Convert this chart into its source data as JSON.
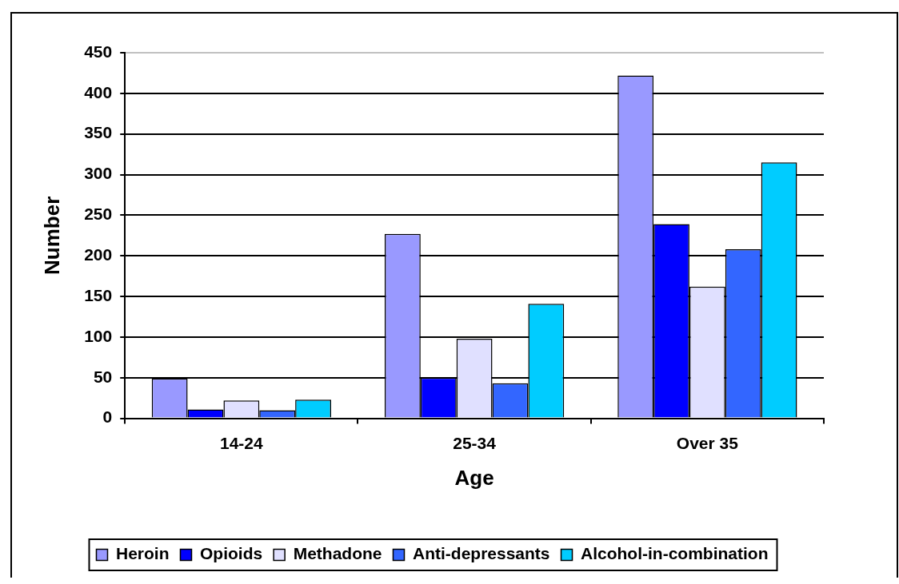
{
  "chart_data": {
    "type": "bar",
    "xlabel": "Age",
    "ylabel": "Number",
    "categories": [
      "14-24",
      "25-34",
      "Over 35"
    ],
    "series": [
      {
        "name": "Heroin",
        "color": "#9999ff",
        "values": [
          49,
          227,
          422
        ]
      },
      {
        "name": "Opioids",
        "color": "#0000ff",
        "values": [
          11,
          50,
          239
        ]
      },
      {
        "name": "Methadone",
        "color": "#e0e0ff",
        "values": [
          22,
          98,
          162
        ]
      },
      {
        "name": "Anti-depressants",
        "color": "#3366ff",
        "values": [
          10,
          43,
          208
        ]
      },
      {
        "name": "Alcohol-in-combination",
        "color": "#00ccff",
        "values": [
          23,
          141,
          315
        ]
      }
    ],
    "ylim": [
      0,
      450
    ],
    "yticks": [
      0,
      50,
      100,
      150,
      200,
      250,
      300,
      350,
      400,
      450
    ],
    "grid": "y",
    "legend": "bottom"
  }
}
